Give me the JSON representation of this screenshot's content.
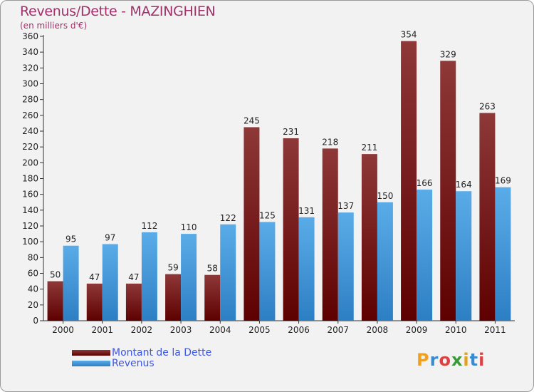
{
  "title": "Revenus/Dette - MAZINGHIEN",
  "subtitle": "(en milliers d'€)",
  "colors": {
    "dette": "#7a1a1a",
    "revenus": "#4a9fe0",
    "title": "#a0316a",
    "legend_text": "#3b55e6"
  },
  "chart_data": {
    "type": "bar",
    "title": "Revenus/Dette - MAZINGHIEN",
    "ylabel": "(en milliers d'€)",
    "xlabel": "",
    "categories": [
      "2000",
      "2001",
      "2002",
      "2003",
      "2004",
      "2005",
      "2006",
      "2007",
      "2008",
      "2009",
      "2010",
      "2011"
    ],
    "series": [
      {
        "name": "Montant de la Dette",
        "values": [
          50,
          47,
          47,
          59,
          58,
          245,
          231,
          218,
          211,
          354,
          329,
          263
        ]
      },
      {
        "name": "Revenus",
        "values": [
          95,
          97,
          112,
          110,
          122,
          125,
          131,
          137,
          150,
          166,
          164,
          169
        ]
      }
    ],
    "ylim": [
      0,
      360
    ],
    "yticks": [
      0,
      20,
      40,
      60,
      80,
      100,
      120,
      140,
      160,
      180,
      200,
      220,
      240,
      260,
      280,
      300,
      320,
      340,
      360
    ],
    "grid": false,
    "legend": "bottom-left"
  },
  "legend": {
    "items": [
      "Montant de la Dette",
      "Revenus"
    ]
  },
  "logo": {
    "letters": [
      "P",
      "r",
      "o",
      "x",
      "i",
      "t",
      "i"
    ],
    "colors": [
      "#f0a020",
      "#3a8ad0",
      "#e04040",
      "#3a9a3a",
      "#e0a020",
      "#3a8ad0",
      "#e04040"
    ]
  }
}
